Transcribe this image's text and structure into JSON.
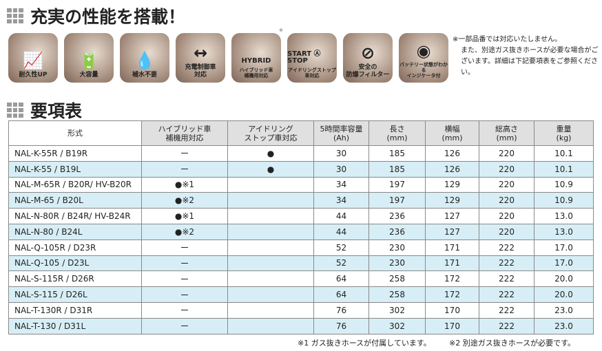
{
  "sections": {
    "features_title": "充実の性能を搭載！",
    "spec_title": "要項表"
  },
  "features": [
    {
      "icon": "chart-up-icon",
      "glyph": "📈",
      "label": "耐久性UP"
    },
    {
      "icon": "battery-large-icon",
      "glyph": "🔋",
      "label": "大容量"
    },
    {
      "icon": "no-water-icon",
      "glyph": "💧",
      "label": "補水不要"
    },
    {
      "icon": "charge-control-icon",
      "glyph": "↔",
      "label": "充電制御車\n対応"
    },
    {
      "icon": "hybrid-car-icon",
      "glyph": "HYBRID",
      "label": "ハイブリッド車\n補機用対応"
    },
    {
      "icon": "start-stop-icon",
      "glyph": "START Ⓐ STOP",
      "label": "アイドリングストップ車対応"
    },
    {
      "icon": "filter-icon",
      "glyph": "⊘",
      "label": "安全の\n防爆フィルター"
    },
    {
      "icon": "indicator-icon",
      "glyph": "◉",
      "label": "バッテリー状態がわかる\nインジケータ付"
    }
  ],
  "hybrid_asterisk": "※",
  "note": {
    "line1": "※一部品番では対応いたしません。",
    "line2": "また、別途ガス抜きホースが必要な場合がございます。詳細は下記要項表をご参照ください。"
  },
  "table": {
    "headers": [
      "形式",
      "ハイブリッド車\n補機用対応",
      "アイドリング\nストップ車対応",
      "5時間率容量\n(Ah)",
      "長さ\n(mm)",
      "横幅\n(mm)",
      "総高さ\n(mm)",
      "重量\n(kg)"
    ],
    "rows": [
      [
        "NAL-K-55R / B19R",
        "ー",
        "●",
        "30",
        "185",
        "126",
        "220",
        "10.1"
      ],
      [
        "NAL-K-55 / B19L",
        "ー",
        "●",
        "30",
        "185",
        "126",
        "220",
        "10.1"
      ],
      [
        "NAL-M-65R / B20R/ HV-B20R",
        "●※1",
        "",
        "34",
        "197",
        "129",
        "220",
        "10.9"
      ],
      [
        "NAL-M-65 / B20L",
        "●※2",
        "",
        "34",
        "197",
        "129",
        "220",
        "10.9"
      ],
      [
        "NAL-N-80R / B24R/ HV-B24R",
        "●※1",
        "",
        "44",
        "236",
        "127",
        "220",
        "13.0"
      ],
      [
        "NAL-N-80 / B24L",
        "●※2",
        "",
        "44",
        "236",
        "127",
        "220",
        "13.0"
      ],
      [
        "NAL-Q-105R / D23R",
        "ー",
        "",
        "52",
        "230",
        "171",
        "222",
        "17.0"
      ],
      [
        "NAL-Q-105 / D23L",
        "ー",
        "",
        "52",
        "230",
        "171",
        "222",
        "17.0"
      ],
      [
        "NAL-S-115R / D26R",
        "ー",
        "",
        "64",
        "258",
        "172",
        "222",
        "20.0"
      ],
      [
        "NAL-S-115 / D26L",
        "ー",
        "",
        "64",
        "258",
        "172",
        "222",
        "20.0"
      ],
      [
        "NAL-T-130R / D31R",
        "ー",
        "",
        "76",
        "302",
        "170",
        "222",
        "23.0"
      ],
      [
        "NAL-T-130 / D31L",
        "ー",
        "",
        "76",
        "302",
        "170",
        "222",
        "23.0"
      ]
    ]
  },
  "footnotes": {
    "n1": "※1 ガス抜きホースが付属しています。",
    "n2": "※2 別途ガス抜きホースが必要です。"
  }
}
